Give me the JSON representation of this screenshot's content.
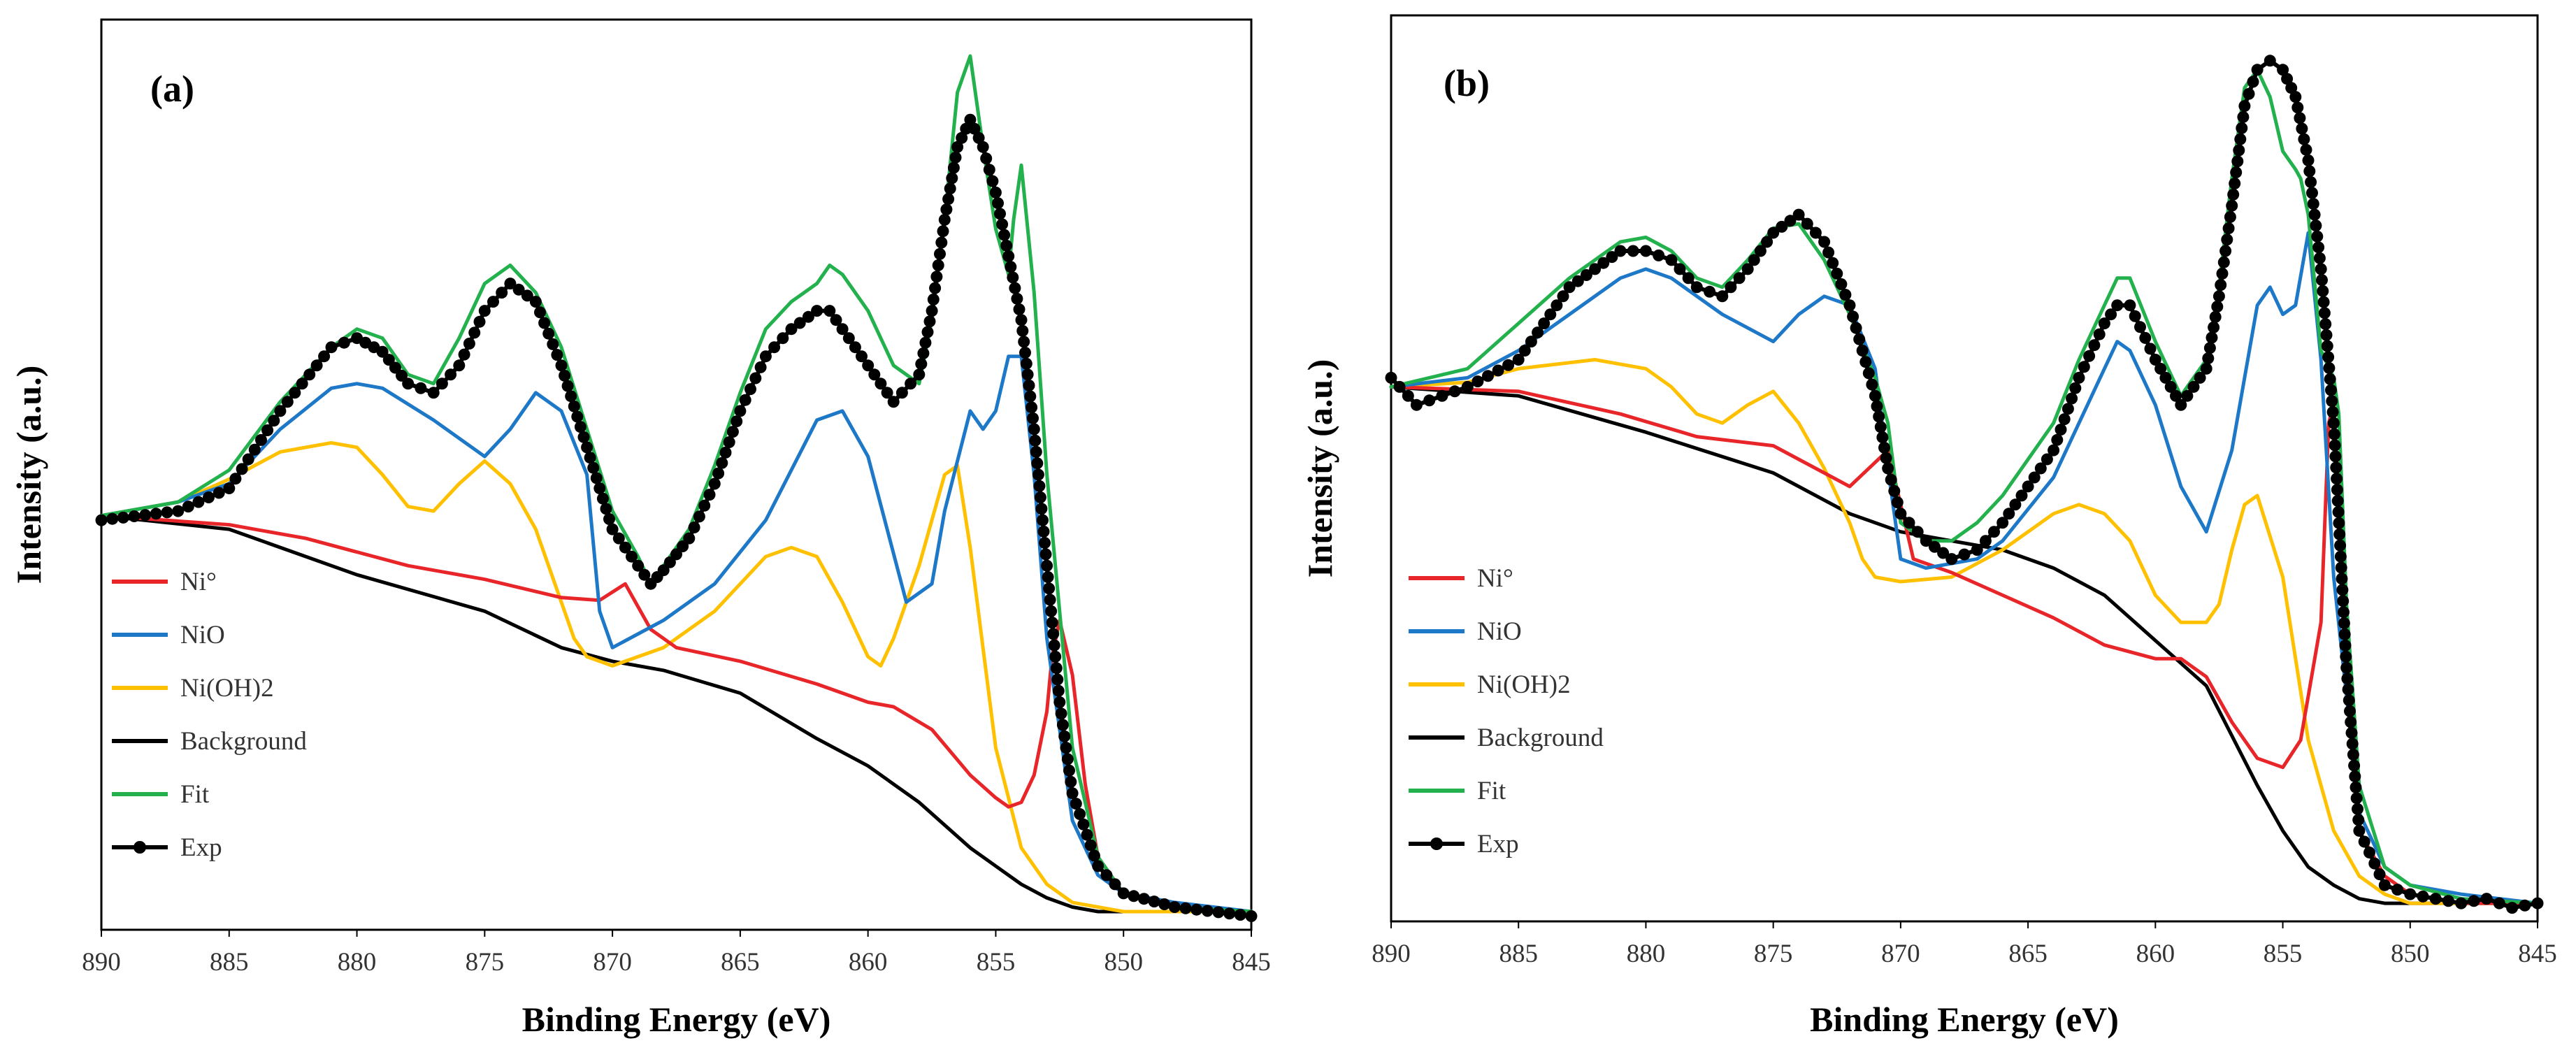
{
  "figure": {
    "series_colors": {
      "ni0": "#e8262a",
      "nio": "#1e78c8",
      "nioh2": "#ffc000",
      "background": "#000000",
      "fit": "#22b14c",
      "exp": "#000000"
    }
  },
  "chart_data": [
    {
      "type": "line",
      "panel_label": "(a)",
      "xlabel": "Binding Energy (eV)",
      "ylabel": "Intensity (a.u.)",
      "xlim": [
        890,
        845
      ],
      "ylim": [
        0,
        100
      ],
      "xticks": [
        890,
        885,
        880,
        875,
        870,
        865,
        860,
        855,
        850,
        845
      ],
      "xtick_labels": [
        "890",
        "885",
        "880",
        "875",
        "870",
        "865",
        "860",
        "855",
        "850",
        "845"
      ],
      "legend": {
        "placement": "lower-left",
        "entries": [
          "Ni°",
          "NiO",
          "Ni(OH)2",
          "Background",
          "Fit",
          "Exp"
        ]
      },
      "series": [
        {
          "key": "ni0",
          "name": "Ni°",
          "x": [
            890,
            885,
            882,
            878,
            875,
            872,
            870.5,
            869.5,
            868.5,
            867.5,
            865,
            862,
            860,
            859,
            857.5,
            856,
            855,
            854.5,
            854,
            853.5,
            853,
            852.8,
            852.5,
            852,
            851.5,
            851,
            850,
            848,
            845
          ],
          "y": [
            45.5,
            44.5,
            43,
            40,
            38.5,
            36.5,
            36.2,
            38,
            33,
            31,
            29.5,
            27,
            25,
            24.5,
            22,
            17,
            14.5,
            13.5,
            14,
            17,
            24,
            30,
            34,
            28,
            16,
            8,
            4,
            2.5,
            2
          ]
        },
        {
          "key": "nio",
          "name": "NiO",
          "x": [
            890,
            887,
            885,
            883,
            881,
            880,
            879,
            877,
            875,
            874,
            873,
            872,
            871,
            870.5,
            870,
            868,
            866,
            864,
            862,
            861,
            860,
            858.5,
            857.5,
            857,
            856,
            855.5,
            855,
            854.5,
            854,
            853.5,
            853,
            852,
            851,
            850,
            848,
            845
          ],
          "y": [
            45.5,
            47,
            49,
            55,
            59.5,
            60,
            59.5,
            56,
            52,
            55,
            59,
            57,
            50,
            35,
            31,
            34,
            38,
            45,
            56,
            57,
            52,
            36,
            38,
            46,
            57,
            55,
            57,
            63,
            63,
            50,
            32,
            12,
            6,
            4,
            3,
            2
          ]
        },
        {
          "key": "nioh2",
          "name": "Ni(OH)2",
          "x": [
            890,
            887,
            885,
            883,
            881,
            880,
            879,
            878,
            877,
            876,
            875,
            874,
            873,
            872.5,
            872,
            871.5,
            871,
            870,
            868,
            866,
            864,
            863,
            862,
            861,
            860,
            859.5,
            859,
            858,
            857,
            856.5,
            856,
            855,
            854,
            853,
            852,
            851,
            850,
            848,
            845
          ],
          "y": [
            45.5,
            47,
            49.5,
            52.5,
            53.5,
            53,
            50,
            46.5,
            46,
            49,
            51.5,
            49,
            44,
            40,
            36,
            32,
            30,
            29,
            31,
            35,
            41,
            42,
            41,
            36,
            30,
            29,
            32,
            40,
            50,
            51,
            42,
            20,
            9,
            5,
            3,
            2.5,
            2,
            2,
            2
          ]
        },
        {
          "key": "background",
          "name": "Background",
          "x": [
            890,
            885,
            880,
            875,
            872,
            870,
            868,
            865,
            862,
            860,
            858,
            856,
            855,
            854,
            853,
            852,
            851,
            850,
            848,
            845
          ],
          "y": [
            45.5,
            44,
            39,
            35,
            31,
            29.5,
            28.5,
            26,
            21,
            18,
            14,
            9,
            7,
            5,
            3.5,
            2.5,
            2,
            2,
            2,
            2
          ]
        },
        {
          "key": "fit",
          "name": "Fit",
          "x": [
            890,
            887,
            885,
            883,
            881,
            880,
            879,
            878,
            877,
            876,
            875,
            874,
            873,
            872,
            871,
            870,
            869,
            868.5,
            868,
            867,
            866,
            865,
            864,
            863,
            862,
            861.5,
            861,
            860,
            859,
            858,
            857.5,
            857,
            856.5,
            856,
            855.5,
            855,
            854.5,
            854.3,
            854,
            853.5,
            853,
            852.5,
            852,
            851,
            850,
            848,
            845
          ],
          "y": [
            45.5,
            47,
            50.5,
            58,
            64,
            66,
            65,
            61,
            60,
            65,
            71,
            73,
            70,
            64,
            55,
            46,
            41,
            38,
            40,
            44,
            51,
            59,
            66,
            69,
            71,
            73,
            72,
            68,
            62,
            60,
            67,
            78,
            92,
            96,
            86,
            77,
            72,
            78,
            84,
            70,
            50,
            35,
            20,
            8,
            4,
            2.5,
            2
          ]
        },
        {
          "key": "exp",
          "name": "Exp",
          "x": [
            890,
            887,
            885,
            883,
            881,
            880,
            879,
            878,
            877,
            876,
            875,
            874,
            873,
            872,
            871,
            870,
            869,
            868.5,
            868,
            867,
            866,
            865,
            864,
            863,
            862,
            861.5,
            861,
            860,
            859,
            858,
            857.5,
            857,
            856.5,
            856,
            855.5,
            855,
            854.5,
            854,
            853.5,
            853,
            852.5,
            852,
            851,
            850,
            848,
            845
          ],
          "y": [
            45,
            46,
            48.5,
            57,
            64,
            65,
            63.5,
            60,
            59,
            62,
            68,
            71,
            69,
            62,
            53,
            44,
            40,
            38,
            39.5,
            43,
            49,
            57,
            63,
            66,
            68,
            68,
            66,
            62,
            58,
            61,
            68,
            78,
            86,
            89,
            86,
            81,
            74,
            67,
            55,
            40,
            25,
            15,
            7,
            4,
            2.5,
            1.5
          ]
        }
      ]
    },
    {
      "type": "line",
      "panel_label": "(b)",
      "xlabel": "Binding Energy (eV)",
      "ylabel": "Intensity (a.u.)",
      "xlim": [
        890,
        845
      ],
      "ylim": [
        0,
        100
      ],
      "xticks": [
        890,
        885,
        880,
        875,
        870,
        865,
        860,
        855,
        850,
        845
      ],
      "xtick_labels": [
        "890",
        "885",
        "880",
        "875",
        "870",
        "865",
        "860",
        "855",
        "850",
        "845"
      ],
      "legend": {
        "placement": "lower-left",
        "entries": [
          "Ni°",
          "NiO",
          "Ni(OH)2",
          "Background",
          "Fit",
          "Exp"
        ]
      },
      "series": [
        {
          "key": "ni0",
          "name": "Ni°",
          "x": [
            890,
            885,
            881,
            878,
            875,
            873,
            872,
            870.5,
            869.5,
            868,
            866,
            864,
            862,
            860,
            859,
            858,
            857,
            856,
            855,
            854.3,
            853.5,
            853.2,
            853,
            852.8,
            852.5,
            852,
            851,
            850,
            848,
            845
          ],
          "y": [
            59,
            58.5,
            56,
            53.5,
            52.5,
            49.5,
            48,
            52,
            40,
            38.5,
            36,
            33.5,
            30.5,
            29,
            29,
            27,
            22,
            18,
            17,
            20,
            33,
            55,
            57,
            47,
            32,
            10,
            5,
            3,
            2,
            2
          ]
        },
        {
          "key": "nio",
          "name": "NiO",
          "x": [
            890,
            887,
            885,
            883,
            881,
            880,
            879,
            877,
            875,
            874,
            873,
            872,
            871,
            870.5,
            870,
            869,
            868,
            867,
            866,
            864,
            862,
            861.5,
            861,
            860,
            859,
            858,
            857,
            856,
            855.5,
            855,
            854.5,
            854,
            853.5,
            853,
            852,
            851,
            850,
            848,
            845
          ],
          "y": [
            59,
            60,
            63,
            67,
            71,
            72,
            71,
            67,
            64,
            67,
            69,
            68,
            61,
            50,
            40,
            39,
            39.5,
            40,
            42,
            49,
            61,
            64,
            63,
            57,
            48,
            43,
            52,
            68,
            70,
            67,
            68,
            76,
            62,
            38,
            12,
            6,
            4,
            3,
            2
          ]
        },
        {
          "key": "nioh2",
          "name": "Ni(OH)2",
          "x": [
            890,
            887,
            885,
            882,
            880,
            879,
            878,
            877,
            876,
            875,
            874,
            873,
            872,
            871.5,
            871,
            870,
            868,
            866,
            864,
            863,
            862,
            861,
            860,
            859,
            858,
            857.5,
            857,
            856.5,
            856,
            855,
            854,
            853,
            852,
            851,
            850,
            848,
            845
          ],
          "y": [
            59,
            59.5,
            61,
            62,
            61,
            59,
            56,
            55,
            57,
            58.5,
            55,
            50,
            44,
            40,
            38,
            37.5,
            38,
            41,
            45,
            46,
            45,
            42,
            36,
            33,
            33,
            35,
            41,
            46,
            47,
            38,
            20,
            10,
            5,
            3,
            2,
            2,
            2
          ]
        },
        {
          "key": "background",
          "name": "Background",
          "x": [
            890,
            885,
            880,
            875,
            872,
            870,
            868,
            866,
            864,
            862,
            860,
            858,
            856,
            855,
            854,
            853,
            852,
            851,
            850,
            848,
            845
          ],
          "y": [
            59,
            58,
            54,
            49.5,
            45,
            43,
            42,
            41,
            39,
            36,
            31,
            26,
            15,
            10,
            6,
            4,
            2.5,
            2,
            2,
            2,
            2
          ]
        },
        {
          "key": "fit",
          "name": "Fit",
          "x": [
            890,
            887,
            885,
            883,
            881,
            880,
            879,
            878,
            877,
            876,
            875,
            874,
            873,
            872,
            871,
            870.5,
            870,
            869,
            868,
            867,
            866,
            864,
            863,
            862,
            861.5,
            861,
            860,
            859,
            858,
            857.5,
            857,
            856.5,
            856,
            855.5,
            855,
            854.5,
            854.3,
            854,
            853.5,
            853,
            852.8,
            852.5,
            852,
            851,
            850,
            848,
            845
          ],
          "y": [
            59,
            61,
            66,
            71,
            75,
            75.5,
            74,
            71,
            70,
            73,
            76.5,
            77,
            73,
            67,
            60,
            55,
            44,
            42,
            42,
            44,
            47,
            55,
            62,
            68,
            71,
            71,
            64,
            58,
            62,
            70,
            82,
            92,
            94,
            91,
            85,
            83,
            82,
            78,
            63,
            60,
            56,
            35,
            15,
            6,
            4,
            2.5,
            2
          ]
        },
        {
          "key": "exp",
          "name": "Exp",
          "x": [
            890,
            889,
            888,
            887,
            885,
            883,
            881,
            880,
            879,
            878,
            877,
            876,
            875,
            874,
            873,
            872,
            871,
            870.5,
            870,
            869,
            868,
            867,
            866,
            864,
            863,
            862,
            861.5,
            861,
            860,
            859,
            858,
            857.5,
            857,
            856.5,
            856,
            855.5,
            855,
            854.5,
            854,
            853.5,
            853,
            852.5,
            852,
            851,
            850,
            849,
            848,
            847,
            846,
            845
          ],
          "y": [
            60,
            57,
            58,
            59,
            62,
            70,
            74,
            74,
            73,
            70,
            69,
            72,
            76,
            78,
            75,
            68,
            58,
            50,
            45,
            42,
            40,
            41,
            44,
            52,
            60,
            66,
            68,
            68,
            62,
            57,
            61,
            69,
            79,
            90,
            94,
            95,
            94,
            91,
            84,
            72,
            55,
            28,
            10,
            4,
            3,
            2.5,
            2,
            2.5,
            1.5,
            2
          ]
        }
      ]
    }
  ]
}
